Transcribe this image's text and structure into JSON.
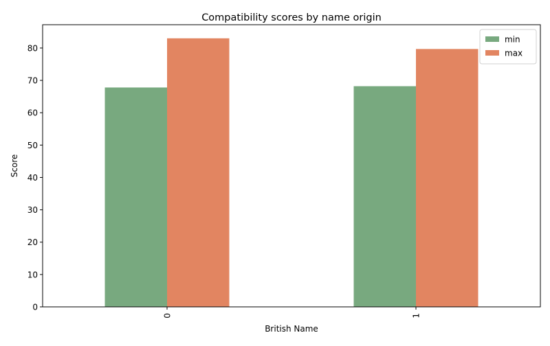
{
  "chart_data": {
    "type": "bar",
    "title": "Compatibility scores by name origin",
    "xlabel": "British Name",
    "ylabel": "Score",
    "categories": [
      "0",
      "1"
    ],
    "series": [
      {
        "name": "min",
        "values": [
          67.8,
          68.2
        ],
        "color": "#78a97f"
      },
      {
        "name": "max",
        "values": [
          83.0,
          79.7
        ],
        "color": "#e28561"
      }
    ],
    "ylim": [
      0,
      87.2
    ],
    "yticks": [
      0,
      10,
      20,
      30,
      40,
      50,
      60,
      70,
      80
    ],
    "grid": false,
    "legend_position": "top-right",
    "x_tick_rotation": "vertical"
  }
}
